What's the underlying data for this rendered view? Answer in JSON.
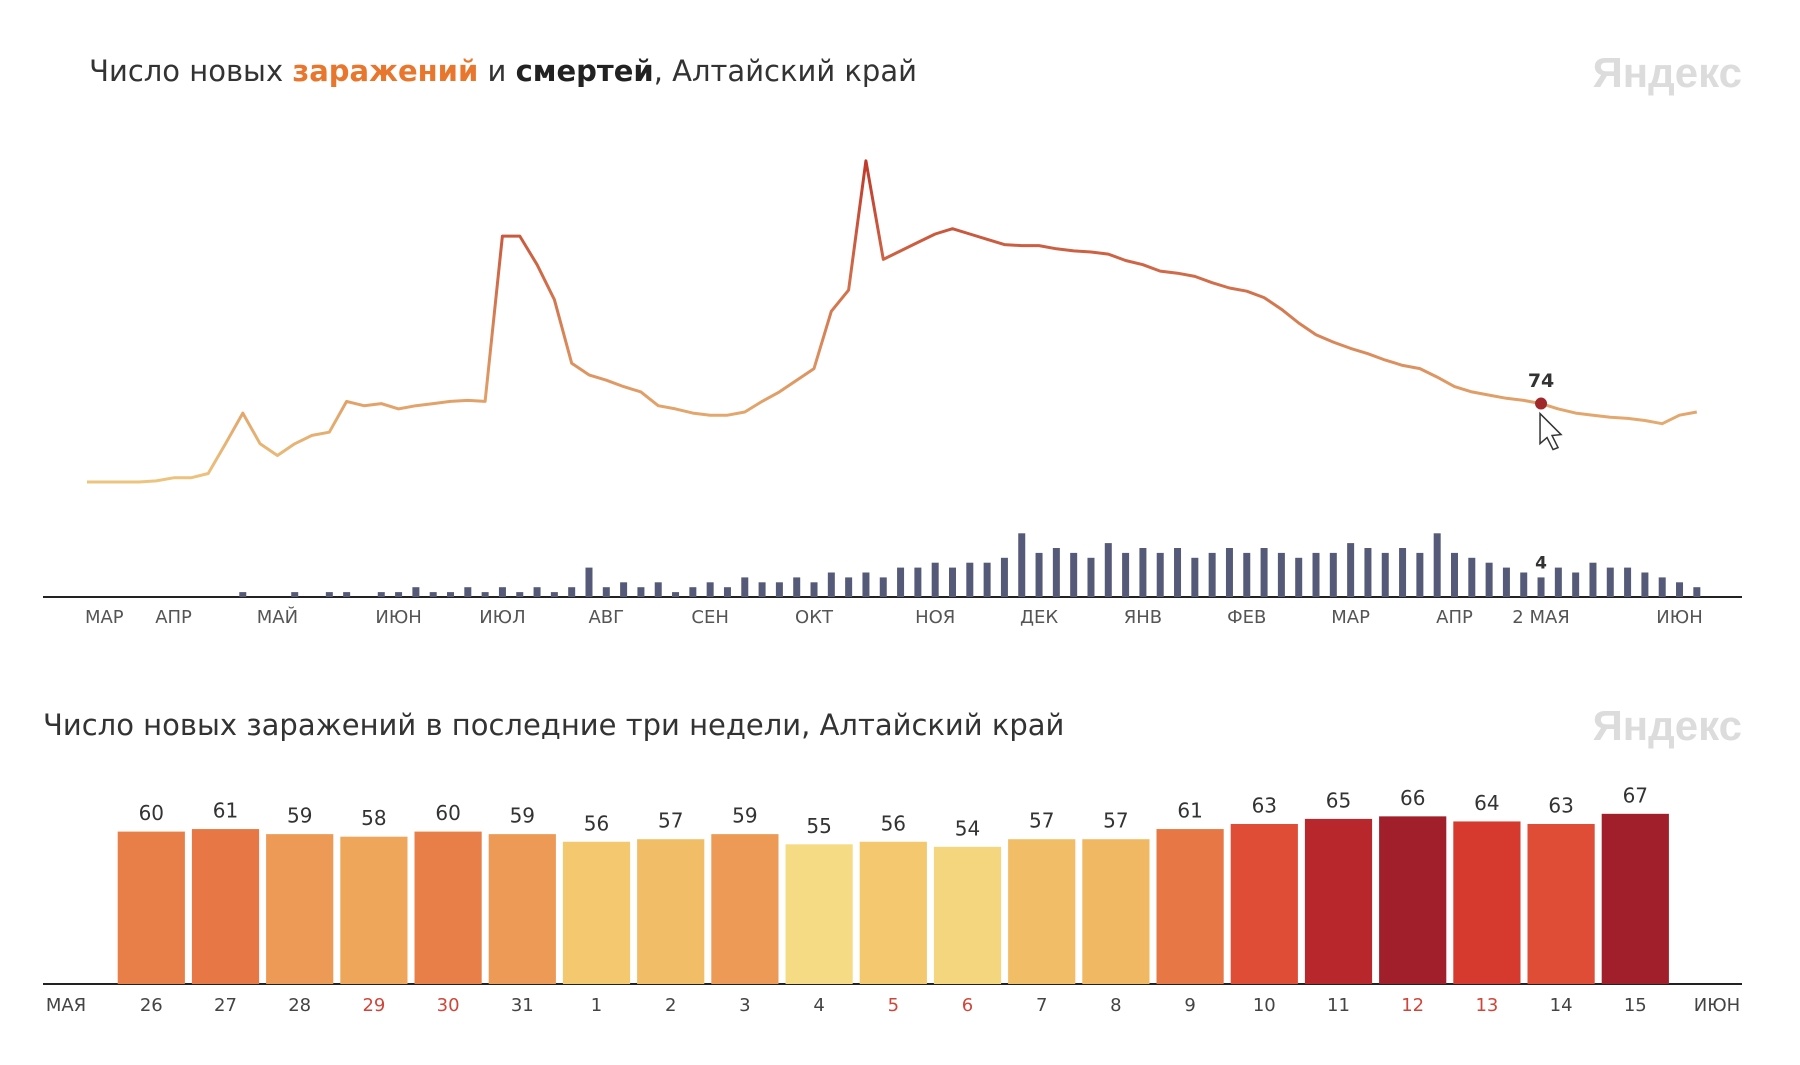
{
  "chart_data": [
    {
      "type": "line",
      "title": [
        "Число новых ",
        "заражений",
        " и ",
        "смертей",
        ", Алтайский край"
      ],
      "brand": "Яндекс",
      "categories": [
        null,
        "МАР",
        null,
        null,
        null,
        "АПР",
        null,
        null,
        null,
        null,
        null,
        "МАЙ",
        null,
        null,
        null,
        null,
        null,
        null,
        "ИЮН",
        null,
        null,
        null,
        null,
        null,
        "ИЮЛ",
        null,
        null,
        null,
        null,
        null,
        "АВГ",
        null,
        null,
        null,
        null,
        null,
        "СЕН",
        null,
        null,
        null,
        null,
        null,
        "ОКТ",
        null,
        null,
        null,
        null,
        null,
        null,
        "НОЯ",
        null,
        null,
        null,
        null,
        null,
        "ДЕК",
        null,
        null,
        null,
        null,
        null,
        "ЯНВ",
        null,
        null,
        null,
        null,
        null,
        "ФЕВ",
        null,
        null,
        null,
        null,
        null,
        "МАР",
        null,
        null,
        null,
        null,
        null,
        "АПР",
        null,
        null,
        null,
        null,
        "2 МАЯ",
        null,
        null,
        null,
        null,
        null,
        null,
        null,
        "ИЮН",
        null
      ],
      "highlight": "2 МАЯ",
      "series": [
        {
          "type": "line",
          "colors": [
            "#ecc47e",
            "#c0392b"
          ],
          "values": [
            0,
            0,
            0,
            0,
            1,
            4,
            4,
            8,
            36,
            65,
            36,
            25,
            36,
            44,
            47,
            76,
            72,
            74,
            69,
            72,
            74,
            76,
            77,
            76,
            232,
            232,
            205,
            172,
            112,
            101,
            96,
            90,
            85,
            72,
            69,
            65,
            63,
            63,
            66,
            76,
            85,
            96,
            107,
            161,
            181,
            303,
            210,
            218,
            226,
            234,
            239,
            234,
            229,
            224,
            223,
            223,
            220,
            218,
            217,
            215,
            209,
            205,
            199,
            197,
            194,
            188,
            183,
            180,
            174,
            163,
            150,
            139,
            132,
            126,
            121,
            115,
            110,
            107,
            99,
            90,
            85,
            82,
            79,
            77,
            74,
            69,
            65,
            63,
            61,
            60,
            58,
            55,
            63,
            66
          ]
        },
        {
          "type": "bar",
          "color": "#555a78",
          "values": [
            0,
            0,
            0,
            0,
            0,
            0,
            0,
            0,
            0,
            1,
            0,
            0,
            1,
            0,
            1,
            1,
            0,
            1,
            1,
            2,
            1,
            1,
            2,
            1,
            2,
            1,
            2,
            1,
            2,
            6,
            2,
            3,
            2,
            3,
            1,
            2,
            3,
            2,
            4,
            3,
            3,
            4,
            3,
            5,
            4,
            5,
            4,
            6,
            6,
            7,
            6,
            7,
            7,
            8,
            13,
            9,
            10,
            9,
            8,
            11,
            9,
            10,
            9,
            10,
            8,
            9,
            10,
            9,
            10,
            9,
            8,
            9,
            9,
            11,
            10,
            9,
            10,
            9,
            13,
            9,
            8,
            7,
            6,
            5,
            4,
            6,
            5,
            7,
            6,
            6,
            5,
            4,
            3,
            2
          ]
        }
      ]
    },
    {
      "type": "bar",
      "title": "Число новых заражений в последние три недели, Алтайский край",
      "brand": "Яндекс",
      "x_start_label": "МАЯ",
      "x_end_label": "ИЮН",
      "categories": [
        "26",
        "27",
        "28",
        "29",
        "30",
        "31",
        "1",
        "2",
        "3",
        "4",
        "5",
        "6",
        "7",
        "8",
        "9",
        "10",
        "11",
        "12",
        "13",
        "14",
        "15"
      ],
      "weekend_categories": [
        "29",
        "30",
        "5",
        "6",
        "12",
        "13"
      ],
      "values": [
        60,
        61,
        59,
        58,
        60,
        59,
        56,
        57,
        59,
        55,
        56,
        54,
        57,
        57,
        61,
        63,
        65,
        66,
        64,
        63,
        67
      ],
      "colors": [
        "#e97f48",
        "#e77846",
        "#ec9a55",
        "#eea75a",
        "#e97f48",
        "#ec9a55",
        "#f3c86e",
        "#f1bd66",
        "#ec9a55",
        "#f5dc84",
        "#f3c86e",
        "#f4d67e",
        "#f1bd66",
        "#f0b862",
        "#e77846",
        "#df4d36",
        "#b8272c",
        "#a11f2a",
        "#d63a2e",
        "#df4d36",
        "#a11f2a"
      ]
    }
  ]
}
